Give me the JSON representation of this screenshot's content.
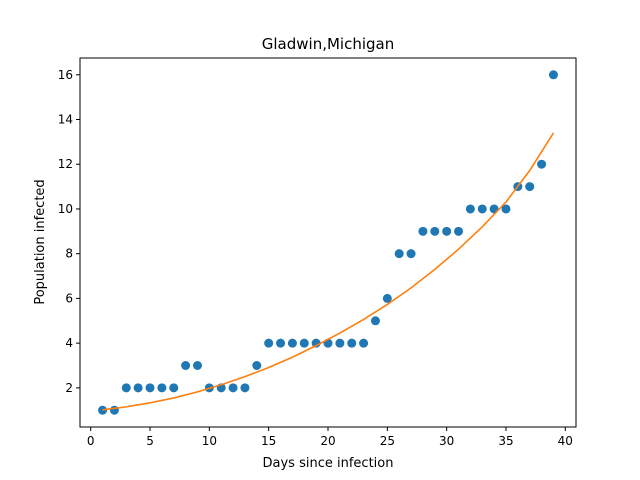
{
  "chart_data": {
    "type": "scatter",
    "title": "Gladwin,Michigan",
    "xlabel": "Days since infection",
    "ylabel": "Population infected",
    "xlim": [
      -0.9,
      40.9
    ],
    "ylim": [
      0.25,
      16.75
    ],
    "xticks": [
      0,
      5,
      10,
      15,
      20,
      25,
      30,
      35,
      40
    ],
    "yticks": [
      2,
      4,
      6,
      8,
      10,
      12,
      14,
      16
    ],
    "grid": false,
    "legend": "none",
    "series": [
      {
        "kind": "scatter",
        "color": "#1f77b4",
        "x": [
          1,
          2,
          3,
          4,
          5,
          6,
          7,
          8,
          9,
          10,
          11,
          12,
          13,
          14,
          15,
          16,
          17,
          18,
          19,
          20,
          21,
          22,
          23,
          24,
          25,
          26,
          27,
          28,
          29,
          30,
          31,
          32,
          33,
          34,
          35,
          36,
          37,
          38,
          39
        ],
        "y": [
          1,
          1,
          2,
          2,
          2,
          2,
          2,
          3,
          3,
          2,
          2,
          2,
          2,
          3,
          4,
          4,
          4,
          4,
          4,
          4,
          4,
          4,
          4,
          5,
          6,
          8,
          8,
          9,
          9,
          9,
          9,
          10,
          10,
          10,
          10,
          11,
          11,
          12,
          16
        ]
      },
      {
        "kind": "line",
        "color": "#ff7f0e",
        "x": [
          1,
          3,
          5,
          7,
          9,
          11,
          13,
          15,
          17,
          19,
          21,
          23,
          25,
          27,
          29,
          31,
          33,
          35,
          37,
          39
        ],
        "y": [
          1.02,
          1.15,
          1.33,
          1.55,
          1.82,
          2.14,
          2.5,
          2.91,
          3.37,
          3.89,
          4.45,
          5.06,
          5.73,
          6.47,
          7.3,
          8.2,
          9.2,
          10.31,
          11.72,
          13.4
        ]
      }
    ]
  }
}
